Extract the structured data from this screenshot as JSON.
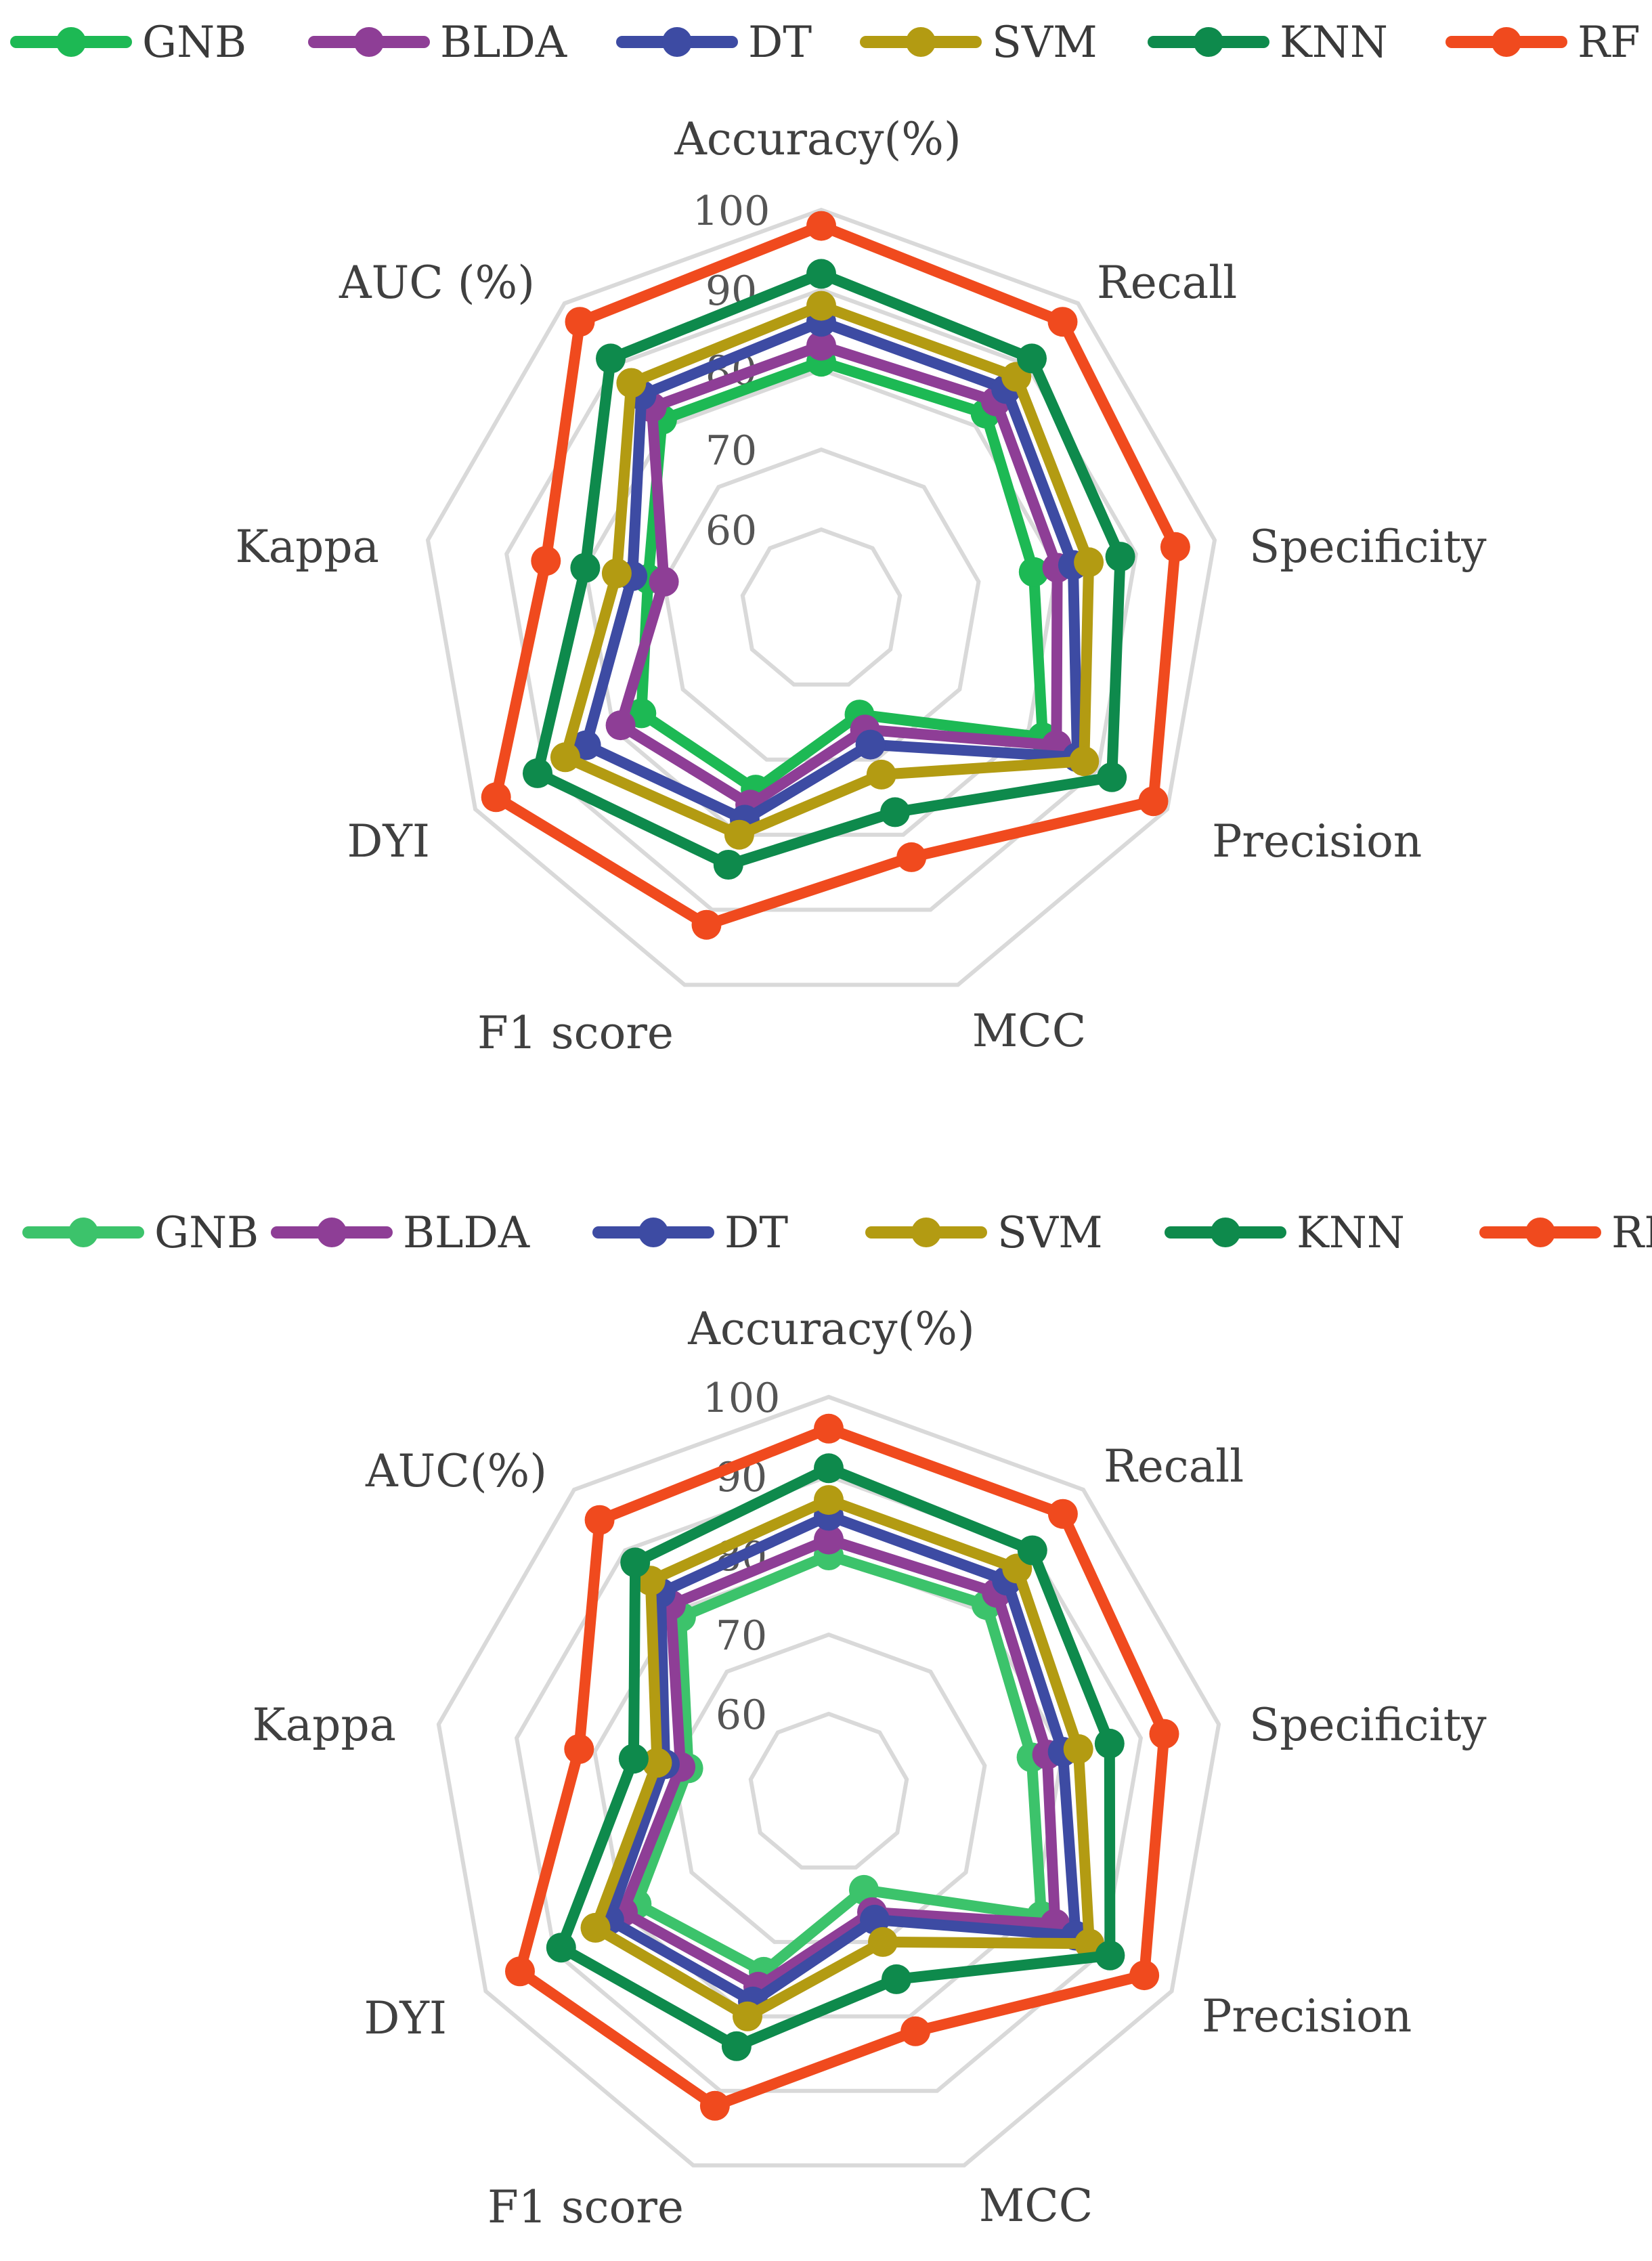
{
  "chart_data": [
    {
      "type": "radar",
      "axes": [
        "Accuracy(%)",
        "Recall",
        "Specificity",
        "Precision",
        "MCC",
        "F1 score",
        "DYI",
        "Kappa",
        "AUC (%)"
      ],
      "range": [
        50,
        100
      ],
      "ticks": [
        60,
        70,
        80,
        90,
        100
      ],
      "legend_position": "top",
      "series": [
        {
          "name": "GNB",
          "color": "#1db954",
          "values": [
            81,
            82,
            77,
            82,
            64,
            74,
            76,
            72,
            81
          ]
        },
        {
          "name": "BLDA",
          "color": "#8e3e96",
          "values": [
            83,
            84,
            80,
            84,
            66,
            76,
            79,
            70,
            83
          ]
        },
        {
          "name": "DT",
          "color": "#3d4ba3",
          "values": [
            86,
            86,
            82,
            87,
            68,
            78,
            84,
            74,
            85
          ]
        },
        {
          "name": "SVM",
          "color": "#b39b12",
          "values": [
            88,
            88,
            84,
            88,
            72,
            80,
            87,
            76,
            87
          ]
        },
        {
          "name": "KNN",
          "color": "#0e8a4c",
          "values": [
            92,
            91,
            88,
            92,
            77,
            84,
            91,
            80,
            91
          ]
        },
        {
          "name": "RF",
          "color": "#f04a1e",
          "values": [
            98,
            97,
            95,
            98,
            83,
            92,
            97,
            85,
            97
          ]
        }
      ]
    },
    {
      "type": "radar",
      "axes": [
        "Accuracy(%)",
        "Recall",
        "Specificity",
        "Precision",
        "MCC",
        "F1 score",
        "DYI",
        "Kappa",
        "AUC(%)"
      ],
      "range": [
        50,
        100
      ],
      "ticks": [
        60,
        70,
        80,
        90,
        100
      ],
      "legend_position": "top",
      "series": [
        {
          "name": "GNB",
          "color": "#3cc36b",
          "values": [
            80,
            81,
            76,
            81,
            63,
            74,
            78,
            68,
            79
          ]
        },
        {
          "name": "BLDA",
          "color": "#8e3e96",
          "values": [
            82,
            83,
            78,
            83,
            66,
            76,
            80,
            69,
            81
          ]
        },
        {
          "name": "DT",
          "color": "#3d4ba3",
          "values": [
            85,
            85,
            80,
            86,
            67,
            78,
            82,
            71,
            83
          ]
        },
        {
          "name": "SVM",
          "color": "#b39b12",
          "values": [
            87,
            87,
            82,
            88,
            70,
            80,
            84,
            72,
            85
          ]
        },
        {
          "name": "KNN",
          "color": "#0e8a4c",
          "values": [
            91,
            90,
            86,
            91,
            75,
            84,
            89,
            75,
            88
          ]
        },
        {
          "name": "RF",
          "color": "#f04a1e",
          "values": [
            96,
            96,
            93,
            96,
            82,
            92,
            95,
            82,
            95
          ]
        }
      ]
    }
  ]
}
